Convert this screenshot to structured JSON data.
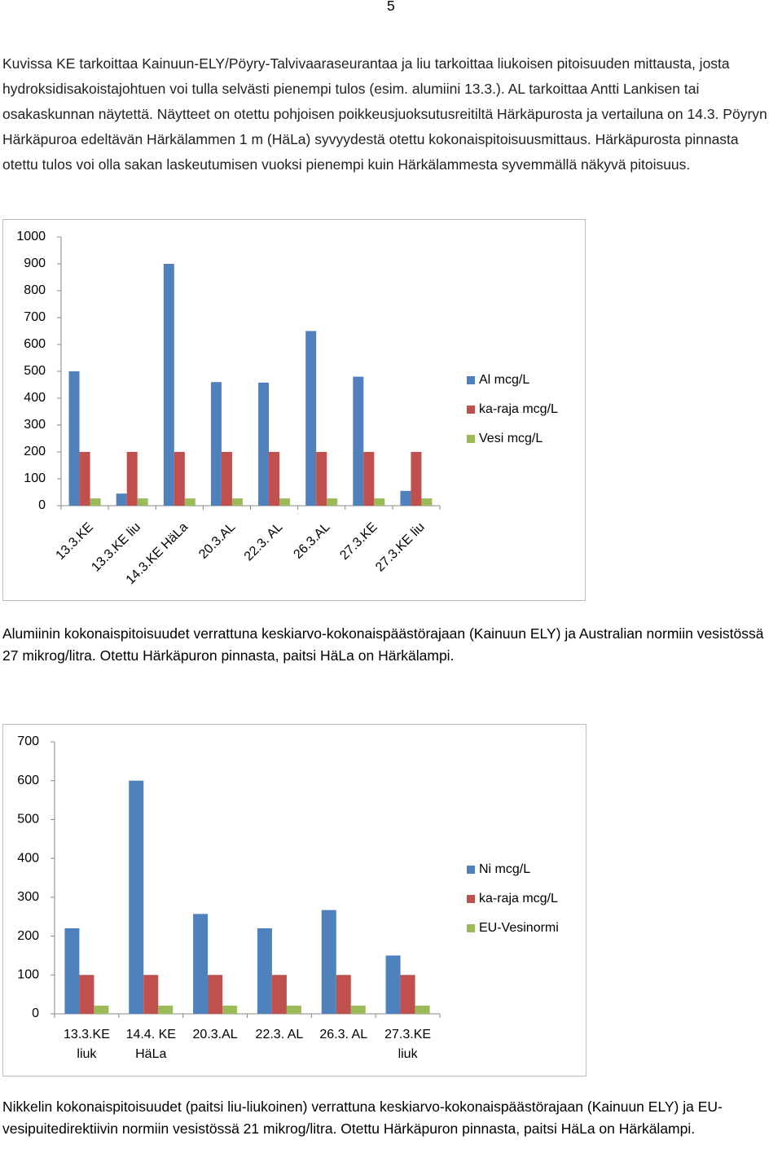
{
  "page_number": "5",
  "intro": "Kuvissa KE tarkoittaa Kainuun-ELY/Pöyry-Talvivaaraseurantaa ja liu tarkoittaa liukoisen pitoisuuden mittausta, josta hydroksidisakoistajohtuen voi tulla selvästi pienempi tulos (esim. alumiini 13.3.). AL tarkoittaa Antti Lankisen tai osakaskunnan näytettä. Näytteet on otettu pohjoisen poikkeusjuoksutusreitiltä Härkäpurosta ja vertailuna on 14.3. Pöyryn Härkäpuroa edeltävän Härkälammen 1 m (HäLa) syvyydestä otettu kokonaispitoisuusmittaus. Härkäpurosta pinnasta otettu tulos voi olla sakan laskeutumisen vuoksi pienempi kuin Härkälammesta syvemmällä näkyvä pitoisuus.",
  "chart_data": [
    {
      "type": "bar",
      "categories": [
        "13.3.KE",
        "13.3.KE liu",
        "14.3.KE HäLa",
        "20.3.AL",
        "22.3. AL",
        "26.3.AL",
        "27.3.KE",
        "27.3.KE liu"
      ],
      "series": [
        {
          "name": "Al  mcg/L",
          "color": "#4f81bd",
          "values": [
            500,
            45,
            900,
            460,
            458,
            650,
            480,
            55
          ]
        },
        {
          "name": "ka-raja mcg/L",
          "color": "#c0504d",
          "values": [
            200,
            200,
            200,
            200,
            200,
            200,
            200,
            200
          ]
        },
        {
          "name": "Vesi mcg/L",
          "color": "#9bbb59",
          "values": [
            27,
            27,
            27,
            27,
            27,
            27,
            27,
            27
          ]
        }
      ],
      "ylim": [
        0,
        1000
      ],
      "yticks": [
        0,
        100,
        200,
        300,
        400,
        500,
        600,
        700,
        800,
        900,
        1000
      ],
      "legend": "right"
    },
    {
      "type": "bar",
      "categories": [
        "13.3.KE liuk",
        "14.4. KE HäLa",
        "20.3.AL",
        "22.3. AL",
        "26.3. AL",
        "27.3.KE liuk"
      ],
      "series": [
        {
          "name": "Ni  mcg/L",
          "color": "#4f81bd",
          "values": [
            220,
            600,
            257,
            220,
            267,
            150
          ]
        },
        {
          "name": "ka-raja mcg/L",
          "color": "#c0504d",
          "values": [
            100,
            100,
            100,
            100,
            100,
            100
          ]
        },
        {
          "name": "EU-Vesinormi",
          "color": "#9bbb59",
          "values": [
            21,
            21,
            21,
            21,
            21,
            21
          ]
        }
      ],
      "ylim": [
        0,
        700
      ],
      "yticks": [
        0,
        100,
        200,
        300,
        400,
        500,
        600,
        700
      ],
      "legend": "right"
    }
  ],
  "captions": [
    "Alumiinin kokonaispitoisuudet verrattuna keskiarvo-kokonaispäästörajaan (Kainuun ELY) ja Australian normiin vesistössä 27 mikrog/litra. Otettu Härkäpuron pinnasta, paitsi HäLa on Härkälampi.",
    "Nikkelin kokonaispitoisuudet (paitsi liu-liukoinen) verrattuna keskiarvo-kokonaispäästörajaan (Kainuun ELY) ja EU-vesipuitedirektiivin normiin vesistössä 21 mikrog/litra. Otettu Härkäpuron pinnasta, paitsi HäLa on Härkälampi."
  ]
}
